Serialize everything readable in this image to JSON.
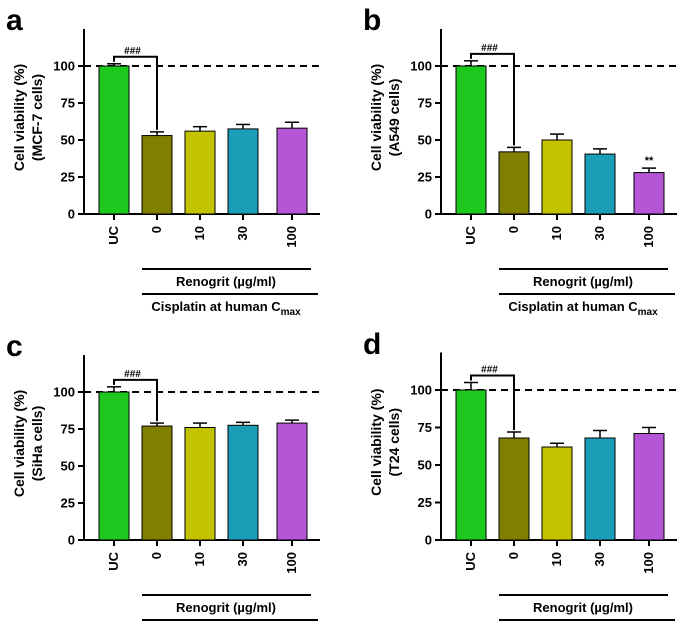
{
  "figure_title": "Cell viability bar charts (four panels)",
  "chart_data": [
    {
      "panel": "a",
      "type": "bar",
      "ylabel_line1": "Cell viability (%)",
      "ylabel_line2": "(MCF-7 cells)",
      "categories": [
        "UC",
        "0",
        "10",
        "30",
        "100"
      ],
      "values": [
        100,
        53,
        56,
        57.5,
        58
      ],
      "errors": [
        1.5,
        2.5,
        3,
        3,
        4
      ],
      "colors": [
        "#1ec81e",
        "#7f7f00",
        "#c3c300",
        "#1a9eb8",
        "#b556d6"
      ],
      "ylim": [
        0,
        125
      ],
      "yticks": [
        "0",
        "25",
        "50",
        "75",
        "100"
      ],
      "reference_line": 100,
      "comparison_label": "###",
      "point_labels": [
        "",
        "",
        "",
        "",
        ""
      ],
      "bracket_inner": "Renogrit (µg/ml)",
      "bracket_outer_main": "Cisplatin at human C",
      "bracket_outer_sub": "max"
    },
    {
      "panel": "b",
      "type": "bar",
      "ylabel_line1": "Cell viability (%)",
      "ylabel_line2": "(A549 cells)",
      "categories": [
        "UC",
        "0",
        "10",
        "30",
        "100"
      ],
      "values": [
        100,
        42,
        50,
        40.5,
        28
      ],
      "errors": [
        3.5,
        3,
        4,
        3.5,
        3
      ],
      "colors": [
        "#1ec81e",
        "#7f7f00",
        "#c3c300",
        "#1a9eb8",
        "#b556d6"
      ],
      "ylim": [
        0,
        125
      ],
      "yticks": [
        "0",
        "25",
        "50",
        "75",
        "100"
      ],
      "reference_line": 100,
      "comparison_label": "###",
      "point_labels": [
        "",
        "",
        "",
        "",
        "**"
      ],
      "bracket_inner": "Renogrit (µg/ml)",
      "bracket_outer_main": "Cisplatin at human C",
      "bracket_outer_sub": "max"
    },
    {
      "panel": "c",
      "type": "bar",
      "ylabel_line1": "Cell viability (%)",
      "ylabel_line2": "(SiHa cells)",
      "categories": [
        "UC",
        "0",
        "10",
        "30",
        "100"
      ],
      "values": [
        100,
        77,
        76,
        77.5,
        79
      ],
      "errors": [
        3.5,
        2,
        3,
        2,
        2
      ],
      "colors": [
        "#1ec81e",
        "#7f7f00",
        "#c3c300",
        "#1a9eb8",
        "#b556d6"
      ],
      "ylim": [
        0,
        125
      ],
      "yticks": [
        "0",
        "25",
        "50",
        "75",
        "100"
      ],
      "reference_line": 100,
      "comparison_label": "###",
      "point_labels": [
        "",
        "",
        "",
        "",
        ""
      ],
      "bracket_inner": "Renogrit (µg/ml)",
      "bracket_outer_main": "Cisplatin at human C",
      "bracket_outer_sub": "max"
    },
    {
      "panel": "d",
      "type": "bar",
      "ylabel_line1": "Cell viability (%)",
      "ylabel_line2": "(T24 cells)",
      "categories": [
        "UC",
        "0",
        "10",
        "30",
        "100"
      ],
      "values": [
        100,
        68,
        62,
        68,
        71
      ],
      "errors": [
        5,
        4,
        2.5,
        5,
        4
      ],
      "colors": [
        "#1ec81e",
        "#7f7f00",
        "#c3c300",
        "#1a9eb8",
        "#b556d6"
      ],
      "ylim": [
        0,
        125
      ],
      "yticks": [
        "0",
        "25",
        "50",
        "75",
        "100"
      ],
      "reference_line": 100,
      "comparison_label": "###",
      "point_labels": [
        "",
        "",
        "",
        "",
        ""
      ],
      "bracket_inner": "Renogrit (µg/ml)",
      "bracket_outer_main": "Cisplatin at human C",
      "bracket_outer_sub": "max"
    }
  ]
}
